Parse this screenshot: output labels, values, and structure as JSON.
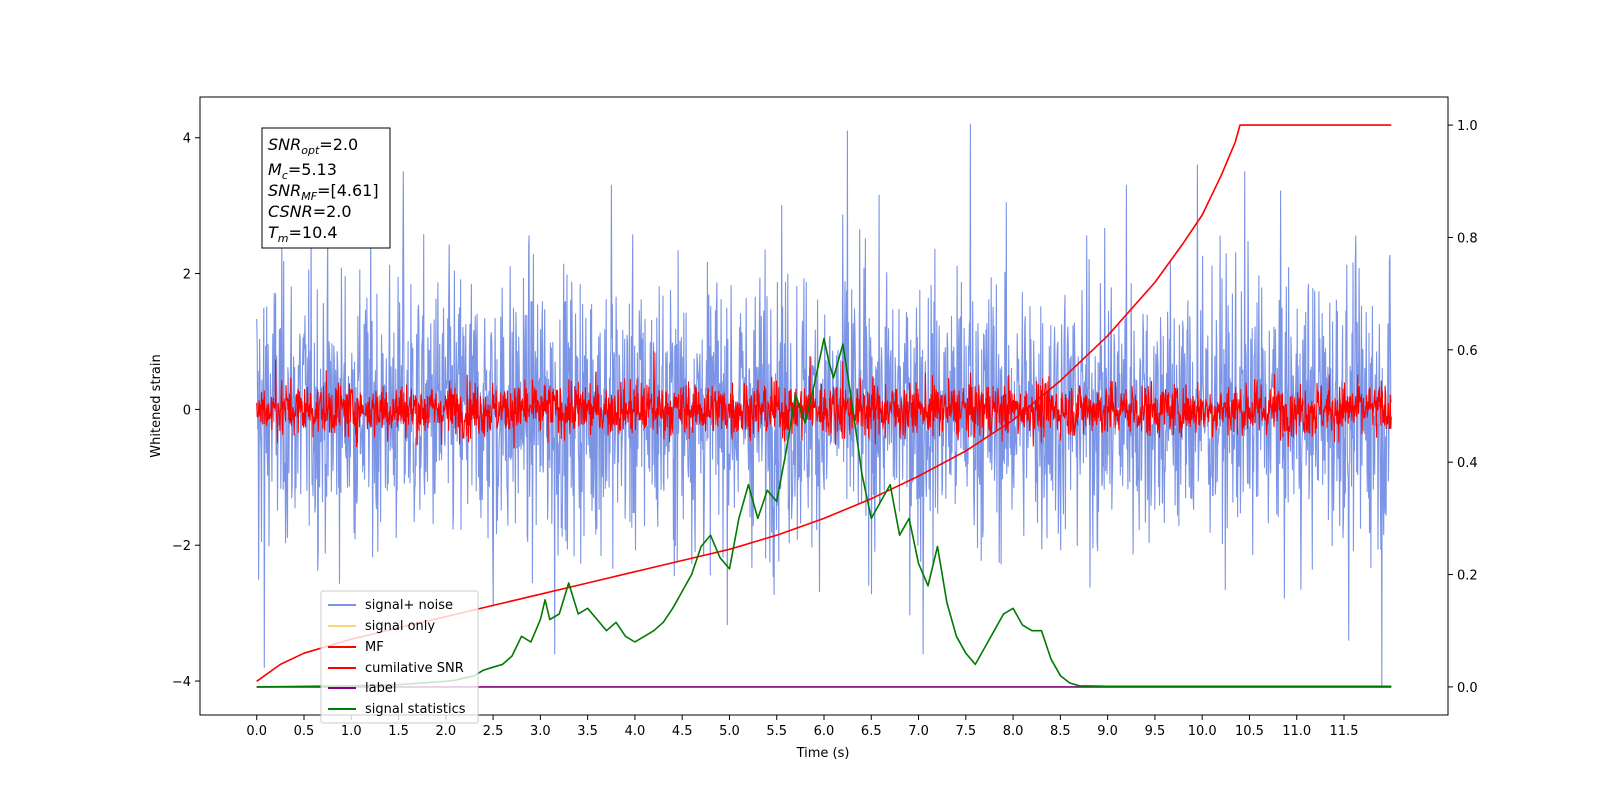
{
  "chart_data": {
    "type": "line",
    "xlabel": "Time (s)",
    "ylabel": "Whitened strain",
    "x_ticks": [
      "0.0",
      "0.5",
      "1.0",
      "1.5",
      "2.0",
      "2.5",
      "3.0",
      "3.5",
      "4.0",
      "4.5",
      "5.0",
      "5.5",
      "6.0",
      "6.5",
      "7.0",
      "7.5",
      "8.0",
      "8.5",
      "9.0",
      "9.5",
      "10.0",
      "10.5",
      "11.0",
      "11.5"
    ],
    "y_left_ticks": [
      "4",
      "2",
      "0",
      "−2",
      "−4"
    ],
    "y_right_ticks": [
      "1.0",
      "0.8",
      "0.6",
      "0.4",
      "0.2",
      "0.0"
    ],
    "xlim": [
      -0.6,
      12.6
    ],
    "ylim_left": [
      -4.5,
      4.6
    ],
    "ylim_right": [
      -0.05,
      1.05
    ],
    "info_box": {
      "line1_main": "SNR",
      "line1_sub": "opt",
      "line1_value": "=2.0",
      "line2_main": "M",
      "line2_sub": "c",
      "line2_value": "=5.13",
      "line3_main": "SNR",
      "line3_sub": "MF",
      "line3_value": "=[4.61]",
      "line4_main": "CSNR",
      "line4_value": "=2.0",
      "line5_main": "T",
      "line5_sub": "m",
      "line5_value": "=10.4"
    },
    "legend": {
      "placement": "lower-left",
      "entries": [
        {
          "label": "signal+ noise",
          "color": "#7b94e6"
        },
        {
          "label": "signal only",
          "color": "#ffd27a"
        },
        {
          "label": "MF",
          "color": "#ff0000"
        },
        {
          "label": "cumilative SNR",
          "color": "#ff0000"
        },
        {
          "label": "label",
          "color": "#800080"
        },
        {
          "label": "signal statistics",
          "color": "#007a00"
        }
      ]
    },
    "series": [
      {
        "name": "signal+ noise",
        "axis": "left",
        "color": "#7b94e6",
        "kind": "noise",
        "x_range": [
          0,
          12
        ],
        "std": 1.0,
        "spikes": [
          [
            0.02,
            -2.5
          ],
          [
            0.08,
            -3.8
          ],
          [
            1.55,
            3.5
          ],
          [
            2.5,
            -2.9
          ],
          [
            3.15,
            -3.6
          ],
          [
            3.75,
            3.3
          ],
          [
            5.55,
            3.0
          ],
          [
            6.25,
            4.1
          ],
          [
            7.05,
            -3.6
          ],
          [
            7.55,
            4.2
          ],
          [
            9.2,
            3.3
          ],
          [
            9.95,
            3.6
          ],
          [
            10.45,
            3.5
          ],
          [
            11.9,
            -4.1
          ],
          [
            11.55,
            -3.4
          ]
        ]
      },
      {
        "name": "MF",
        "axis": "left",
        "color": "#ff0000",
        "kind": "noise",
        "x_range": [
          0,
          12
        ],
        "std": 0.2,
        "spikes": [
          [
            0.2,
            0.73
          ],
          [
            4.2,
            0.85
          ],
          [
            5.85,
            0.78
          ],
          [
            6.2,
            0.7
          ]
        ]
      },
      {
        "name": "label",
        "axis": "right",
        "color": "#800080",
        "x": [
          0,
          12
        ],
        "values": [
          0.0,
          0.0
        ]
      },
      {
        "name": "cumilative SNR",
        "axis": "right",
        "color": "#ff0000",
        "x": [
          0,
          0.25,
          0.5,
          1,
          1.5,
          2,
          2.5,
          3,
          3.5,
          4,
          4.5,
          5,
          5.5,
          6,
          6.5,
          7,
          7.5,
          8,
          8.5,
          9,
          9.5,
          9.8,
          10,
          10.2,
          10.35,
          10.4,
          11.2,
          12
        ],
        "values": [
          0.01,
          0.04,
          0.06,
          0.085,
          0.105,
          0.125,
          0.145,
          0.165,
          0.185,
          0.205,
          0.225,
          0.245,
          0.27,
          0.3,
          0.335,
          0.375,
          0.42,
          0.475,
          0.545,
          0.625,
          0.72,
          0.79,
          0.84,
          0.91,
          0.97,
          1.0,
          1.0,
          1.0
        ]
      },
      {
        "name": "signal statistics",
        "axis": "right",
        "color": "#007a00",
        "x": [
          0,
          1,
          1.5,
          2,
          2.1,
          2.3,
          2.4,
          2.5,
          2.6,
          2.7,
          2.8,
          2.9,
          3.0,
          3.05,
          3.1,
          3.2,
          3.3,
          3.4,
          3.5,
          3.6,
          3.7,
          3.8,
          3.9,
          4.0,
          4.1,
          4.2,
          4.3,
          4.4,
          4.5,
          4.6,
          4.7,
          4.8,
          4.9,
          5.0,
          5.1,
          5.2,
          5.3,
          5.4,
          5.5,
          5.6,
          5.7,
          5.8,
          5.9,
          6.0,
          6.05,
          6.1,
          6.2,
          6.3,
          6.4,
          6.5,
          6.6,
          6.7,
          6.8,
          6.9,
          7.0,
          7.1,
          7.2,
          7.3,
          7.4,
          7.5,
          7.6,
          7.7,
          7.8,
          7.9,
          8.0,
          8.1,
          8.2,
          8.3,
          8.4,
          8.5,
          8.6,
          8.7,
          9.0,
          10.0,
          11.0,
          12.0
        ],
        "values": [
          0.0,
          0.002,
          0.004,
          0.01,
          0.012,
          0.02,
          0.03,
          0.035,
          0.04,
          0.055,
          0.09,
          0.08,
          0.12,
          0.155,
          0.12,
          0.13,
          0.185,
          0.13,
          0.14,
          0.12,
          0.1,
          0.115,
          0.09,
          0.08,
          0.09,
          0.1,
          0.115,
          0.14,
          0.17,
          0.2,
          0.25,
          0.27,
          0.23,
          0.21,
          0.3,
          0.36,
          0.3,
          0.35,
          0.33,
          0.42,
          0.52,
          0.47,
          0.54,
          0.62,
          0.58,
          0.55,
          0.61,
          0.5,
          0.38,
          0.3,
          0.33,
          0.36,
          0.27,
          0.3,
          0.22,
          0.18,
          0.25,
          0.15,
          0.09,
          0.06,
          0.04,
          0.07,
          0.1,
          0.13,
          0.14,
          0.11,
          0.1,
          0.1,
          0.05,
          0.02,
          0.007,
          0.002,
          0.001,
          0.001,
          0.001,
          0.001
        ]
      }
    ]
  }
}
